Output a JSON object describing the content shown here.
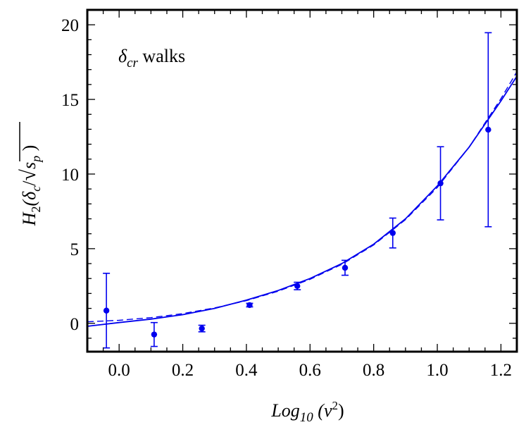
{
  "chart_data": {
    "type": "scatter",
    "title": "",
    "annotation": {
      "symbol": "δ",
      "subscript": "cr",
      "text": " walks"
    },
    "xlabel": {
      "main": "Log",
      "subscript": "10",
      "arg": " (ν",
      "sup": "2",
      "close": ")"
    },
    "ylabel": {
      "H": "H",
      "hsub": "2",
      "open": "(δ",
      "csub": "c",
      "slash": "/",
      "s": "s",
      "psub": "p",
      "close": " )"
    },
    "xlim": [
      -0.1,
      1.25
    ],
    "ylim": [
      -1.9,
      21
    ],
    "x_ticks": [
      0.0,
      0.2,
      0.4,
      0.6,
      0.8,
      1.0,
      1.2
    ],
    "x_tick_labels": [
      "0.0",
      "0.2",
      "0.4",
      "0.6",
      "0.8",
      "1.0",
      "1.2"
    ],
    "y_ticks": [
      0,
      5,
      10,
      15,
      20
    ],
    "y_tick_labels": [
      "0",
      "5",
      "10",
      "15",
      "20"
    ],
    "series": [
      {
        "name": "data",
        "kind": "points_with_error_bars",
        "color": "#0000ee",
        "points": [
          {
            "x": -0.04,
            "y": 0.85,
            "err": 2.5
          },
          {
            "x": 0.11,
            "y": -0.75,
            "err": 0.8
          },
          {
            "x": 0.26,
            "y": -0.35,
            "err": 0.22
          },
          {
            "x": 0.41,
            "y": 1.22,
            "err": 0.12
          },
          {
            "x": 0.56,
            "y": 2.5,
            "err": 0.25
          },
          {
            "x": 0.71,
            "y": 3.72,
            "err": 0.5
          },
          {
            "x": 0.86,
            "y": 6.05,
            "err": 1.0
          },
          {
            "x": 1.01,
            "y": 9.38,
            "err": 2.45
          },
          {
            "x": 1.16,
            "y": 12.97,
            "err": 6.5
          }
        ]
      },
      {
        "name": "fit (solid)",
        "kind": "curve",
        "style": "solid",
        "color": "#0000ee",
        "x": [
          -0.1,
          0.0,
          0.1,
          0.2,
          0.3,
          0.4,
          0.5,
          0.6,
          0.7,
          0.8,
          0.9,
          1.0,
          1.1,
          1.2,
          1.25
        ],
        "y": [
          -0.2,
          0.05,
          0.28,
          0.58,
          1.0,
          1.55,
          2.2,
          3.0,
          4.0,
          5.3,
          7.0,
          9.2,
          11.8,
          14.9,
          16.55
        ]
      },
      {
        "name": "fit (dashed)",
        "kind": "curve",
        "style": "dashed",
        "color": "#0000ee",
        "x": [
          -0.1,
          0.0,
          0.1,
          0.2,
          0.3,
          0.4,
          0.5,
          0.6,
          0.7,
          0.8,
          0.9,
          1.0,
          1.1,
          1.2,
          1.25
        ],
        "y": [
          0.1,
          0.2,
          0.38,
          0.65,
          1.03,
          1.52,
          2.15,
          2.95,
          3.95,
          5.25,
          6.95,
          9.1,
          11.8,
          15.05,
          16.85
        ]
      }
    ]
  }
}
